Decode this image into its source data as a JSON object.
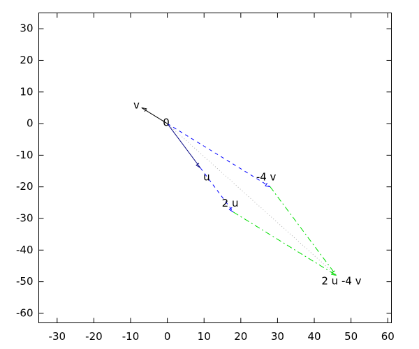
{
  "chart_data": {
    "type": "vector",
    "xlim": [
      -35,
      61
    ],
    "ylim": [
      -63,
      35
    ],
    "xticks": [
      -30,
      -20,
      -10,
      0,
      10,
      20,
      30,
      40,
      50,
      60
    ],
    "yticks": [
      -60,
      -50,
      -40,
      -30,
      -20,
      -10,
      0,
      10,
      20,
      30
    ],
    "segments": [
      {
        "x": [
          0,
          -7
        ],
        "y": [
          0,
          5
        ],
        "color": "#000000",
        "line_style": "solid",
        "arrow": true
      },
      {
        "x": [
          0,
          9
        ],
        "y": [
          0,
          -14
        ],
        "color": "#000080",
        "line_style": "solid",
        "arrow": true
      },
      {
        "x": [
          0,
          28
        ],
        "y": [
          0,
          -20
        ],
        "color": "#0000ff",
        "line_style": "dashed",
        "arrow": true
      },
      {
        "x": [
          9,
          18
        ],
        "y": [
          -14,
          -28
        ],
        "color": "#0000ff",
        "line_style": "dashed",
        "arrow": true
      },
      {
        "x": [
          28,
          46
        ],
        "y": [
          -20,
          -48
        ],
        "color": "#00dd00",
        "line_style": "dashdot",
        "arrow": true
      },
      {
        "x": [
          18,
          46
        ],
        "y": [
          -28,
          -48
        ],
        "color": "#00dd00",
        "line_style": "dashdot",
        "arrow": true
      },
      {
        "x": [
          0,
          46
        ],
        "y": [
          0,
          -48
        ],
        "color": "#b0b0b0",
        "line_style": "dotted",
        "arrow": false
      }
    ],
    "annotations": [
      {
        "text": "0",
        "x": -0.3,
        "y": 0.2
      },
      {
        "text": "v",
        "x": -8.4,
        "y": 5.8
      },
      {
        "text": "u",
        "x": 10.7,
        "y": -17
      },
      {
        "text": "2 u",
        "x": 17.1,
        "y": -25.3
      },
      {
        "text": "-4 v",
        "x": 26.9,
        "y": -17
      },
      {
        "text": "2 u -4 v",
        "x": 47.4,
        "y": -49.9
      }
    ]
  }
}
